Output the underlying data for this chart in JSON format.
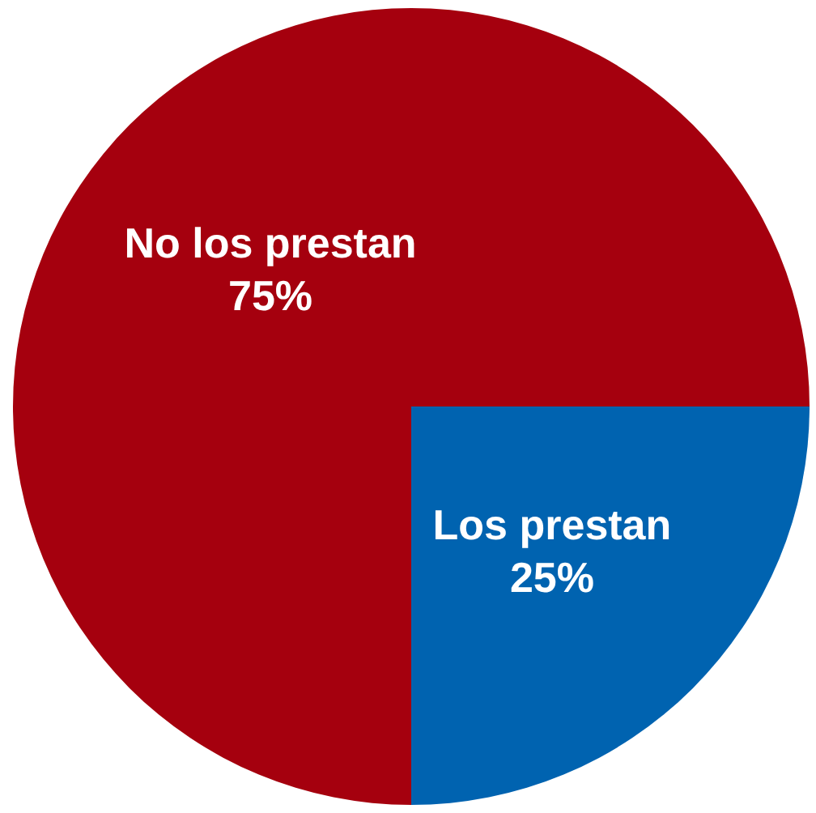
{
  "chart_data": {
    "type": "pie",
    "categories": [
      "No los prestan",
      "Los prestan"
    ],
    "values": [
      75,
      25
    ],
    "value_labels": [
      "75%",
      "25%"
    ],
    "colors": [
      "#a5000e",
      "#0063b0"
    ]
  }
}
